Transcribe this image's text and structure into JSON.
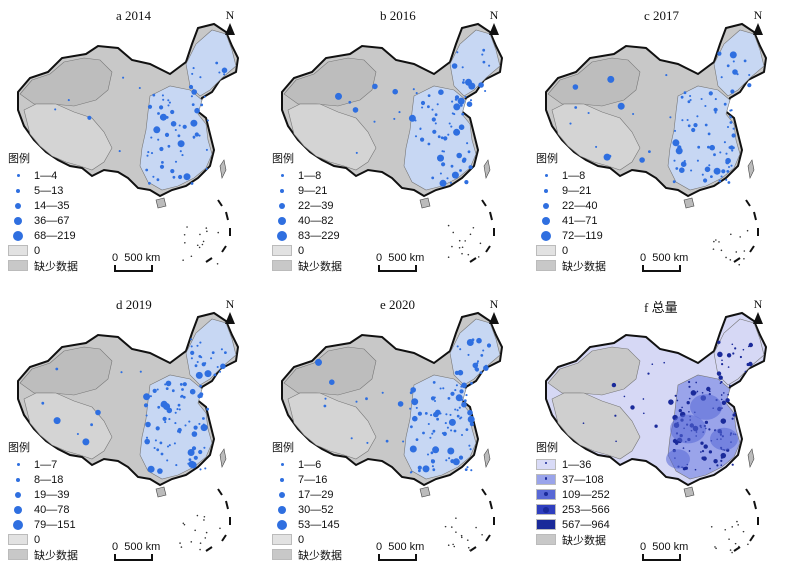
{
  "panels": [
    {
      "title": "a 2014",
      "north": "N",
      "legend_title": "图例",
      "classes": [
        "1—4",
        "5—13",
        "14—35",
        "36—67",
        "68—219"
      ],
      "zero": "0",
      "missing": "缺少数据",
      "scale": "0  500 km"
    },
    {
      "title": "b 2016",
      "north": "N",
      "legend_title": "图例",
      "classes": [
        "1—8",
        "9—21",
        "22—39",
        "40—82",
        "83—229"
      ],
      "zero": "0",
      "missing": "缺少数据",
      "scale": "0  500 km"
    },
    {
      "title": "c 2017",
      "north": "N",
      "legend_title": "图例",
      "classes": [
        "1—8",
        "9—21",
        "22—40",
        "41—71",
        "72—119"
      ],
      "zero": "0",
      "missing": "缺少数据",
      "scale": "0  500 km"
    },
    {
      "title": "d 2019",
      "north": "N",
      "legend_title": "图例",
      "classes": [
        "1—7",
        "8—18",
        "19—39",
        "40—78",
        "79—151"
      ],
      "zero": "0",
      "missing": "缺少数据",
      "scale": "0  500 km"
    },
    {
      "title": "e 2020",
      "north": "N",
      "legend_title": "图例",
      "classes": [
        "1—6",
        "7—16",
        "17—29",
        "30—52",
        "53—145"
      ],
      "zero": "0",
      "missing": "缺少数据",
      "scale": "0  500 km"
    },
    {
      "title": "f 总量",
      "north": "N",
      "legend_title": "图例",
      "classes": [
        "1—36",
        "37—108",
        "109—252",
        "253—566",
        "567—964"
      ],
      "zero": "",
      "missing": "缺少数据",
      "scale": "0  500 km"
    }
  ],
  "colors": {
    "missing": "#c8c8c8",
    "zero": "#e2e2e2",
    "point": "#2f6fe0",
    "region_light": "#c7d7f3",
    "total_fill": "#d6d8f5",
    "total_classes": [
      "#d9dbf7",
      "#9aa4ea",
      "#5868d6",
      "#2f3fbf",
      "#1a2a9a"
    ]
  }
}
